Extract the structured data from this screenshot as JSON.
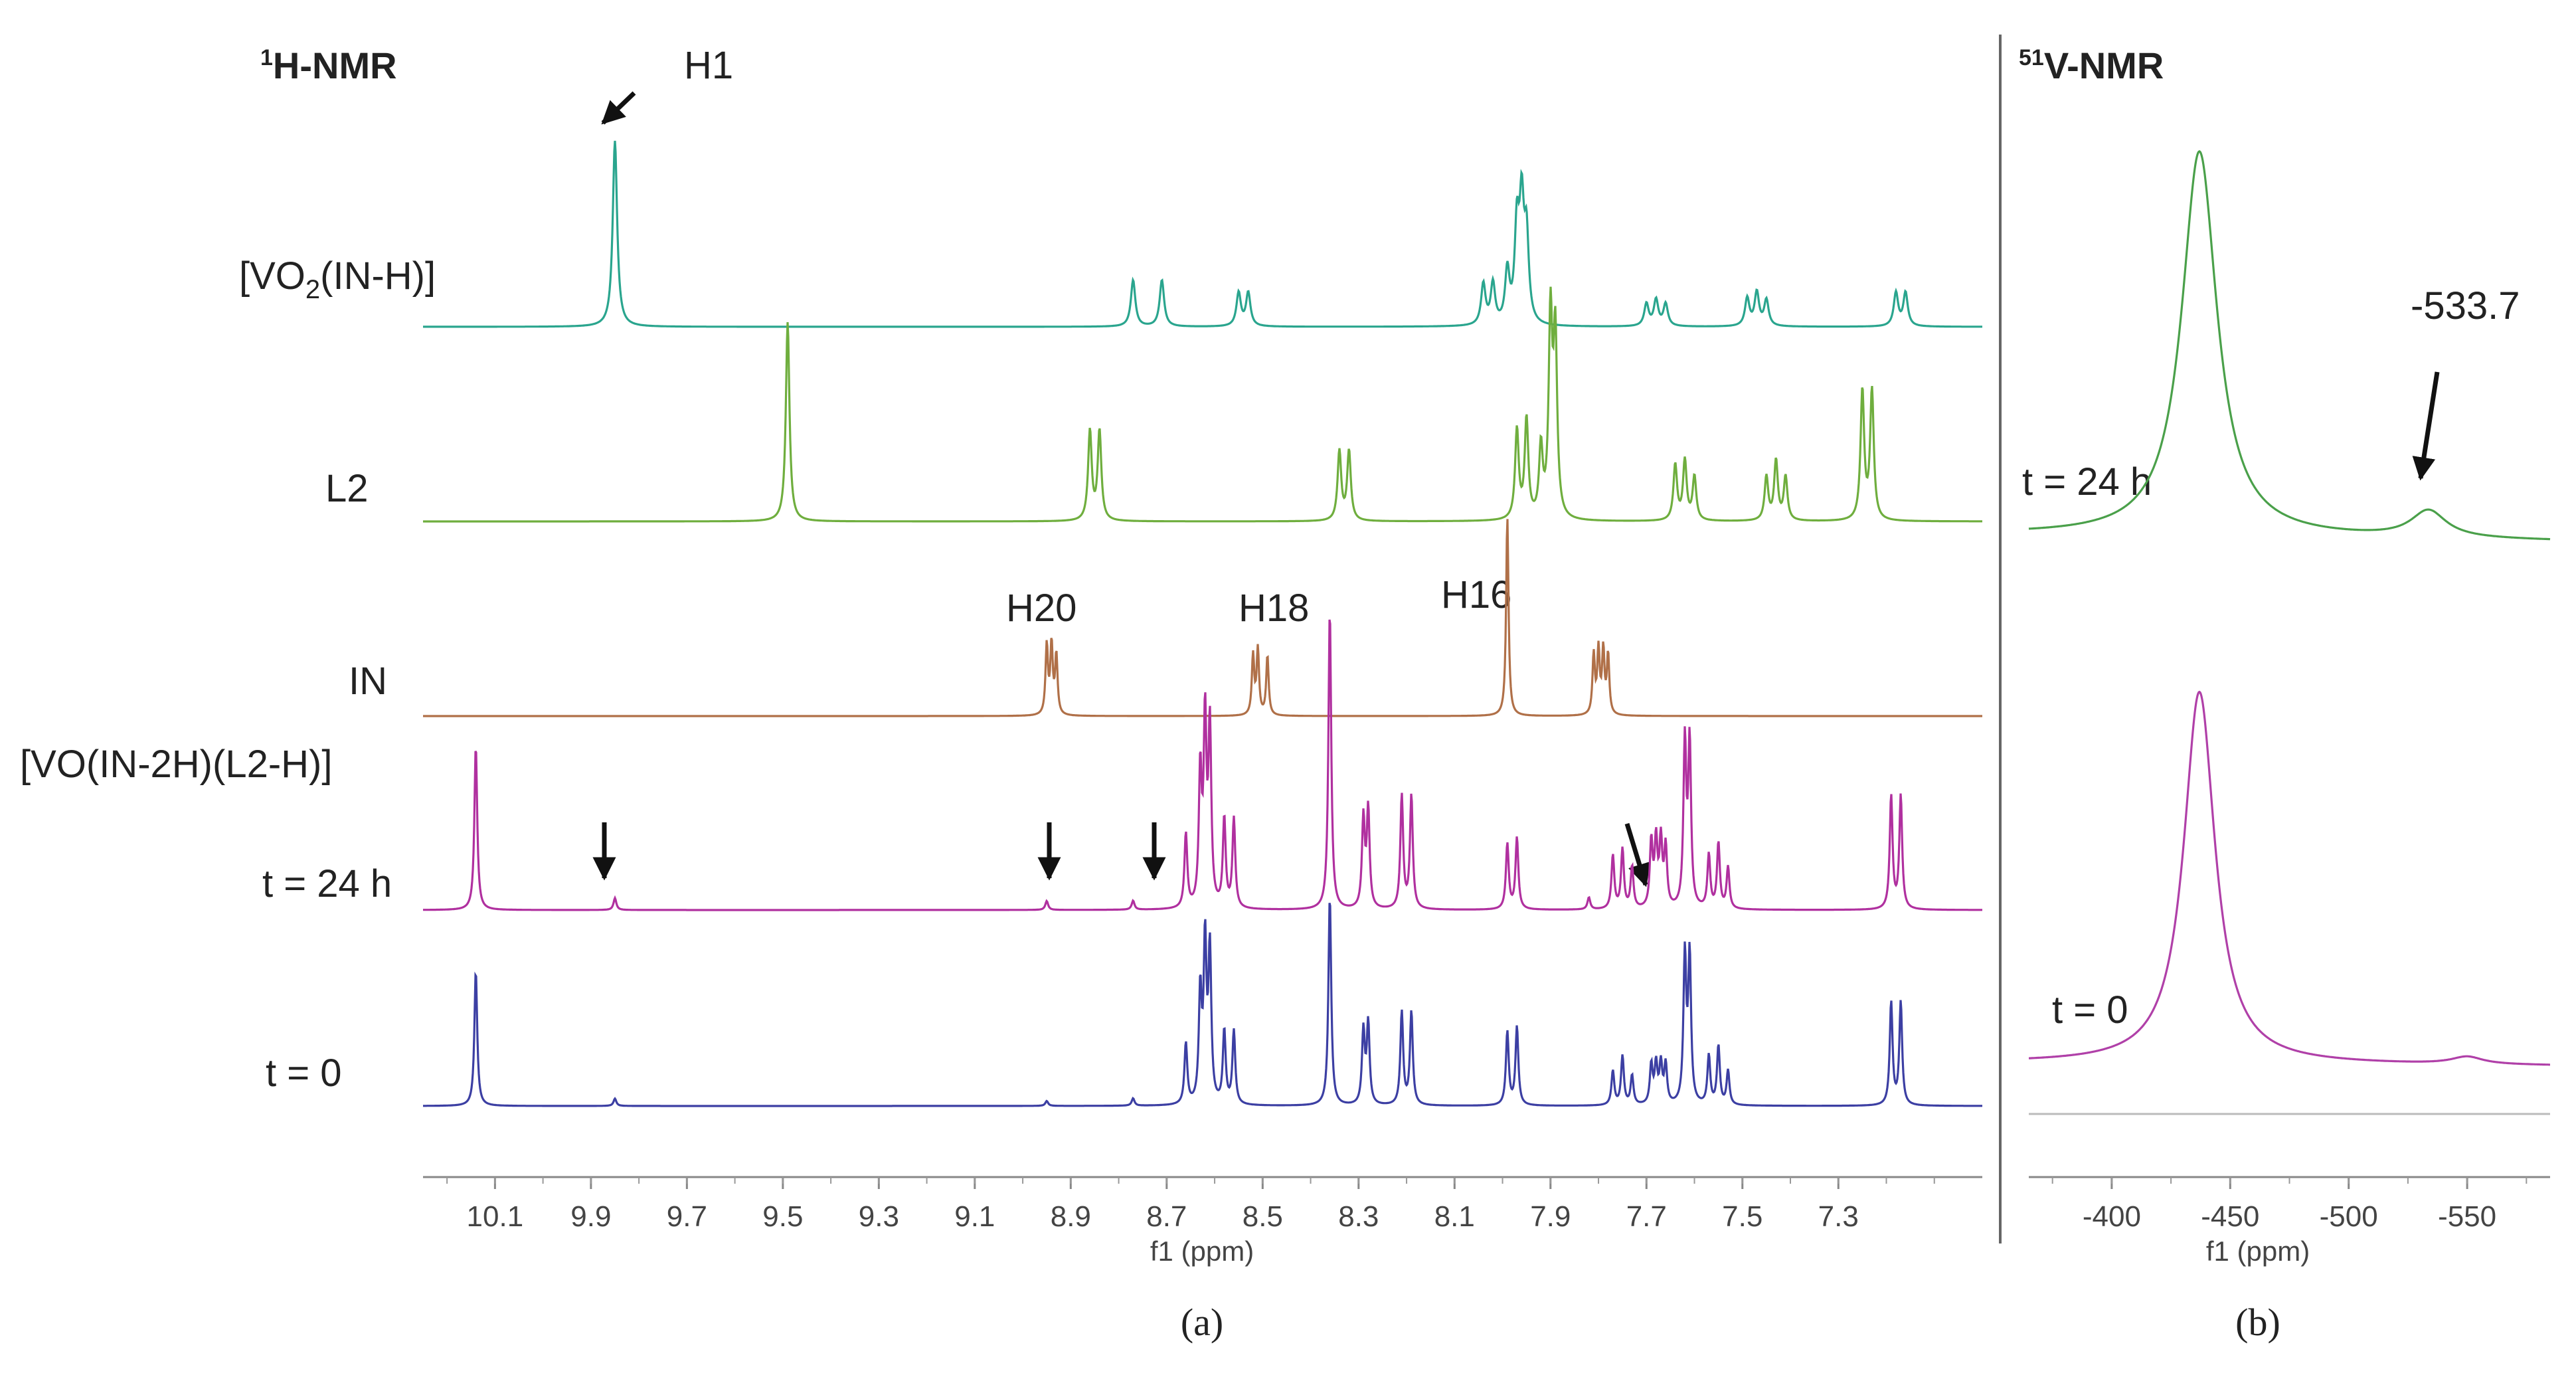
{
  "chart_data": [
    {
      "type": "line",
      "panel": "(a)",
      "title": "1H-NMR",
      "title_sup": "1",
      "title_main": "H-NMR",
      "xlabel": "f1 (ppm)",
      "xlim": [
        10.25,
        7.0
      ],
      "xticks": [
        "10.1",
        "9.9",
        "9.7",
        "9.5",
        "9.3",
        "9.1",
        "8.9",
        "8.7",
        "8.5",
        "8.3",
        "8.1",
        "7.9",
        "7.7",
        "7.5",
        "7.3"
      ],
      "series": [
        {
          "name": "[VO2(IN-H)]",
          "label_main": "[VO",
          "label_sub": "2",
          "label_end": "(IN-H)]",
          "color": "#2aa58e",
          "peaks": [
            [
              9.85,
              1.0
            ],
            [
              8.77,
              0.25
            ],
            [
              8.71,
              0.25
            ],
            [
              8.55,
              0.18
            ],
            [
              8.53,
              0.18
            ],
            [
              8.04,
              0.22
            ],
            [
              8.02,
              0.22
            ],
            [
              7.99,
              0.28
            ],
            [
              7.97,
              0.5
            ],
            [
              7.96,
              0.6
            ],
            [
              7.95,
              0.45
            ],
            [
              7.7,
              0.12
            ],
            [
              7.68,
              0.14
            ],
            [
              7.66,
              0.12
            ],
            [
              7.49,
              0.15
            ],
            [
              7.47,
              0.18
            ],
            [
              7.45,
              0.14
            ],
            [
              7.18,
              0.18
            ],
            [
              7.16,
              0.18
            ]
          ]
        },
        {
          "name": "L2",
          "color": "#6fae3e",
          "peaks": [
            [
              9.49,
              1.0
            ],
            [
              8.86,
              0.45
            ],
            [
              8.84,
              0.45
            ],
            [
              8.34,
              0.35
            ],
            [
              8.32,
              0.35
            ],
            [
              7.97,
              0.45
            ],
            [
              7.95,
              0.5
            ],
            [
              7.92,
              0.35
            ],
            [
              7.9,
              1.0
            ],
            [
              7.89,
              0.9
            ],
            [
              7.64,
              0.28
            ],
            [
              7.62,
              0.3
            ],
            [
              7.6,
              0.22
            ],
            [
              7.45,
              0.22
            ],
            [
              7.43,
              0.3
            ],
            [
              7.41,
              0.22
            ],
            [
              7.25,
              0.65
            ],
            [
              7.23,
              0.65
            ]
          ]
        },
        {
          "name": "IN",
          "color": "#b07048",
          "peaks": [
            [
              8.95,
              0.35
            ],
            [
              8.94,
              0.35
            ],
            [
              8.93,
              0.3
            ],
            [
              8.52,
              0.3
            ],
            [
              8.51,
              0.33
            ],
            [
              8.49,
              0.3
            ],
            [
              7.99,
              1.0
            ],
            [
              7.81,
              0.3
            ],
            [
              7.8,
              0.32
            ],
            [
              7.79,
              0.32
            ],
            [
              7.78,
              0.3
            ]
          ]
        },
        {
          "name": "t = 24 h",
          "color": "#b0309f",
          "peaks": [
            [
              10.14,
              0.55
            ],
            [
              9.85,
              0.04
            ],
            [
              8.95,
              0.03
            ],
            [
              8.77,
              0.03
            ],
            [
              8.66,
              0.25
            ],
            [
              8.63,
              0.45
            ],
            [
              8.62,
              0.62
            ],
            [
              8.61,
              0.6
            ],
            [
              8.58,
              0.3
            ],
            [
              8.56,
              0.3
            ],
            [
              8.36,
              1.0
            ],
            [
              8.29,
              0.3
            ],
            [
              8.28,
              0.33
            ],
            [
              8.21,
              0.38
            ],
            [
              8.19,
              0.38
            ],
            [
              7.99,
              0.22
            ],
            [
              7.97,
              0.24
            ],
            [
              7.82,
              0.04
            ],
            [
              7.77,
              0.18
            ],
            [
              7.75,
              0.2
            ],
            [
              7.73,
              0.14
            ],
            [
              7.69,
              0.22
            ],
            [
              7.68,
              0.22
            ],
            [
              7.67,
              0.22
            ],
            [
              7.66,
              0.2
            ],
            [
              7.62,
              0.55
            ],
            [
              7.61,
              0.55
            ],
            [
              7.57,
              0.18
            ],
            [
              7.55,
              0.22
            ],
            [
              7.53,
              0.14
            ],
            [
              7.19,
              0.38
            ],
            [
              7.17,
              0.38
            ]
          ]
        },
        {
          "name": "t = 0",
          "color": "#3c3fa3",
          "peaks": [
            [
              10.14,
              0.55
            ],
            [
              9.85,
              0.03
            ],
            [
              8.95,
              0.02
            ],
            [
              8.77,
              0.03
            ],
            [
              8.66,
              0.25
            ],
            [
              8.63,
              0.45
            ],
            [
              8.62,
              0.65
            ],
            [
              8.61,
              0.62
            ],
            [
              8.58,
              0.3
            ],
            [
              8.56,
              0.3
            ],
            [
              8.36,
              0.85
            ],
            [
              8.29,
              0.3
            ],
            [
              8.28,
              0.33
            ],
            [
              8.21,
              0.38
            ],
            [
              8.19,
              0.38
            ],
            [
              7.99,
              0.3
            ],
            [
              7.97,
              0.32
            ],
            [
              7.77,
              0.14
            ],
            [
              7.75,
              0.2
            ],
            [
              7.73,
              0.12
            ],
            [
              7.69,
              0.16
            ],
            [
              7.68,
              0.16
            ],
            [
              7.67,
              0.16
            ],
            [
              7.66,
              0.16
            ],
            [
              7.62,
              0.6
            ],
            [
              7.61,
              0.6
            ],
            [
              7.57,
              0.2
            ],
            [
              7.55,
              0.24
            ],
            [
              7.53,
              0.14
            ],
            [
              7.19,
              0.42
            ],
            [
              7.17,
              0.42
            ]
          ]
        }
      ],
      "series_labels": [
        "[VO2(IN-H)]",
        "L2",
        "IN",
        "[VO(IN-2H)(L2-H)]",
        "t = 24 h",
        "t = 0"
      ],
      "complex_label": "[VO(IN-2H)(L2-H)]",
      "annotations": [
        {
          "text": "H1",
          "x": 9.85
        },
        {
          "text": "H20",
          "x": 8.95
        },
        {
          "text": "H18",
          "x": 8.51
        },
        {
          "text": "H16",
          "x": 7.99
        }
      ],
      "arrows_at_ppm": [
        9.85,
        8.95,
        8.77,
        7.82
      ]
    },
    {
      "type": "line",
      "panel": "(b)",
      "title": "51V-NMR",
      "title_sup": "51",
      "title_main": "V-NMR",
      "xlabel": "f1 (ppm)",
      "xlim": [
        -365,
        -585
      ],
      "xticks": [
        "-400",
        "-450",
        "-500",
        "-550"
      ],
      "series": [
        {
          "name": "t = 24 h",
          "color": "#4aa04a",
          "peaks": [
            [
              -437,
              1.0
            ],
            [
              -533.7,
              0.07
            ]
          ]
        },
        {
          "name": "t = 0",
          "color": "#b040a8",
          "peaks": [
            [
              -437,
              1.0
            ],
            [
              -550,
              0.02
            ]
          ]
        }
      ],
      "annotations": [
        {
          "text": "-533.7",
          "x": -533.7
        }
      ]
    }
  ]
}
